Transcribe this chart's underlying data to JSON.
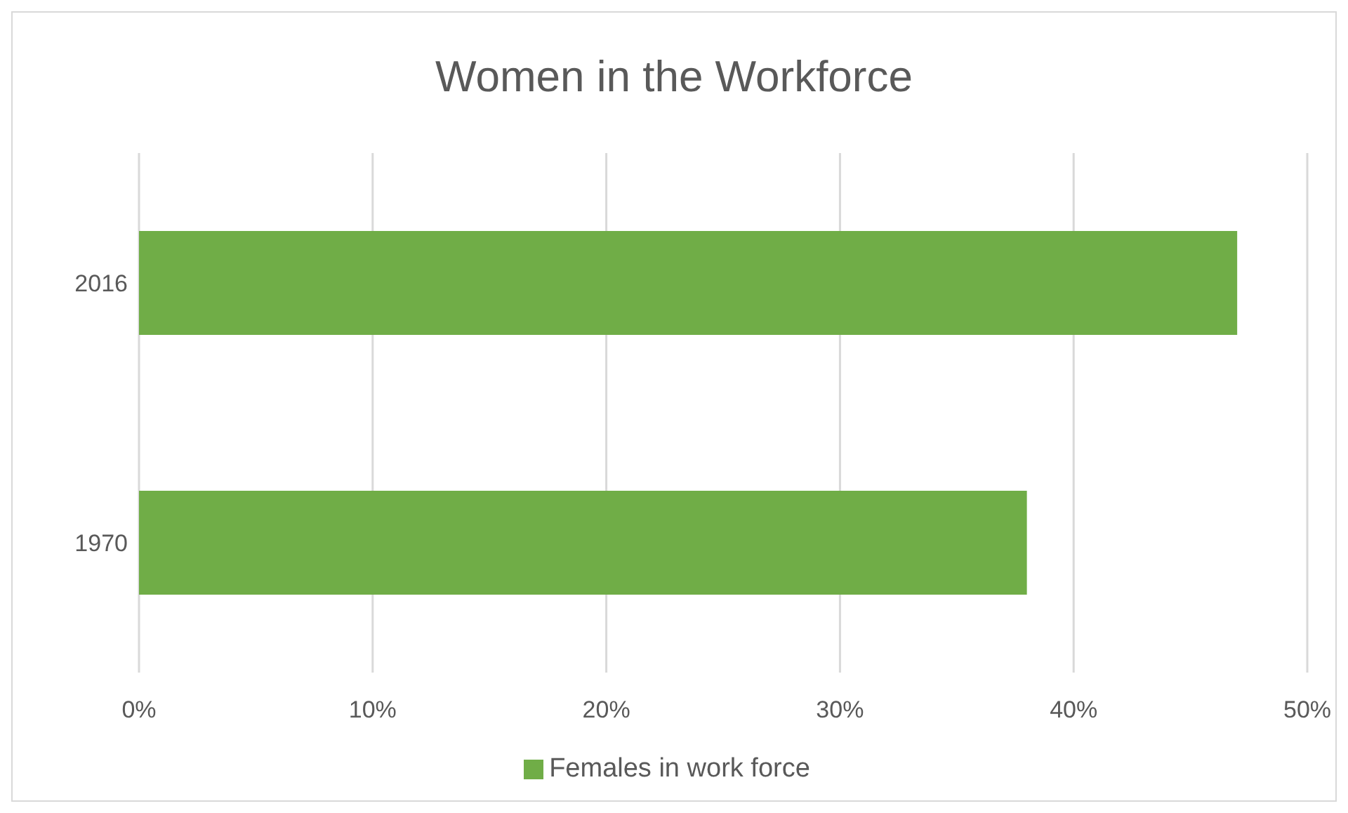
{
  "chart_data": {
    "type": "bar",
    "orientation": "horizontal",
    "title": "Women in the Workforce",
    "categories": [
      "2016",
      "1970"
    ],
    "series": [
      {
        "name": "Females in work force",
        "color": "#70ad47",
        "values": [
          47,
          38
        ]
      }
    ],
    "xlim": [
      0,
      50
    ],
    "xticks": [
      {
        "value": 0,
        "label": "0%"
      },
      {
        "value": 10,
        "label": "10%"
      },
      {
        "value": 20,
        "label": "20%"
      },
      {
        "value": 30,
        "label": "30%"
      },
      {
        "value": 40,
        "label": "40%"
      },
      {
        "value": 50,
        "label": "50%"
      }
    ],
    "grid": "x",
    "legend": "bottom"
  }
}
